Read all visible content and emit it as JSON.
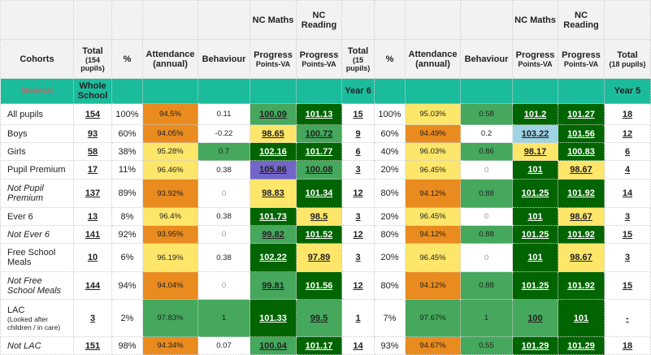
{
  "header": {
    "nc_maths": "NC Maths",
    "nc_reading": "NC Reading",
    "cohorts": "Cohorts",
    "total": "Total",
    "total_ws_sub": "(154 pupils)",
    "total_y6_sub": "(15 pupils)",
    "total_y5_sub": "(18 pupils)",
    "pct": "%",
    "attendance": "Attendance (annual)",
    "behaviour": "Behaviour",
    "progress": "Progress",
    "points_va": "Points-VA"
  },
  "group_row": {
    "label": "General",
    "whole_school": "Whole School",
    "year6": "Year 6",
    "year5": "Year 5"
  },
  "colors": {
    "orange": "#e98b1f",
    "yellow": "#fde66a",
    "green": "#45a85c",
    "dark_green": "#006400",
    "purple": "#7266c8",
    "light_blue": "#9fd3e6",
    "teal": "#1abc9c"
  },
  "rows": [
    {
      "cohort": "All pupils",
      "italic": false,
      "ws": [
        "154",
        "100%",
        [
          "94.5%",
          "O"
        ],
        [
          "0.11",
          "W"
        ],
        [
          "100.09",
          "G"
        ],
        [
          "101.13",
          "D"
        ]
      ],
      "y6": [
        "15",
        "100%",
        [
          "95.03%",
          "Y"
        ],
        [
          "0.58",
          "G"
        ],
        [
          "101.2",
          "D"
        ],
        [
          "101.27",
          "D"
        ]
      ],
      "y5_total": "18"
    },
    {
      "cohort": "Boys",
      "italic": false,
      "ws": [
        "93",
        "60%",
        [
          "94.05%",
          "O"
        ],
        [
          "-0.22",
          "W"
        ],
        [
          "98.65",
          "Y"
        ],
        [
          "100.72",
          "G"
        ]
      ],
      "y6": [
        "9",
        "60%",
        [
          "94.49%",
          "O"
        ],
        [
          "0.2",
          "W"
        ],
        [
          "103.22",
          "B"
        ],
        [
          "101.56",
          "D"
        ]
      ],
      "y5_total": "12"
    },
    {
      "cohort": "Girls",
      "italic": false,
      "ws": [
        "58",
        "38%",
        [
          "95.28%",
          "Y"
        ],
        [
          "0.7",
          "G"
        ],
        [
          "102.16",
          "D"
        ],
        [
          "101.77",
          "D"
        ]
      ],
      "y6": [
        "6",
        "40%",
        [
          "96.03%",
          "Y"
        ],
        [
          "0.86",
          "G"
        ],
        [
          "98.17",
          "Y"
        ],
        [
          "100.83",
          "D"
        ]
      ],
      "y5_total": "6"
    },
    {
      "cohort": "Pupil Premium",
      "italic": false,
      "ws": [
        "17",
        "11%",
        [
          "96.46%",
          "Y"
        ],
        [
          "0.38",
          "W"
        ],
        [
          "105.86",
          "P"
        ],
        [
          "100.08",
          "G"
        ]
      ],
      "y6": [
        "3",
        "20%",
        [
          "96.45%",
          "Y"
        ],
        [
          "0",
          "W"
        ],
        [
          "101",
          "D"
        ],
        [
          "98.67",
          "Y"
        ]
      ],
      "y5_total": "4"
    },
    {
      "cohort": "Not Pupil Premium",
      "italic": true,
      "ws": [
        "137",
        "89%",
        [
          "93.92%",
          "O"
        ],
        [
          "0",
          "W"
        ],
        [
          "98.83",
          "Y"
        ],
        [
          "101.34",
          "D"
        ]
      ],
      "y6": [
        "12",
        "80%",
        [
          "94.12%",
          "O"
        ],
        [
          "0.88",
          "G"
        ],
        [
          "101.25",
          "D"
        ],
        [
          "101.92",
          "D"
        ]
      ],
      "y5_total": "14"
    },
    {
      "cohort": "Ever 6",
      "italic": false,
      "ws": [
        "13",
        "8%",
        [
          "96.4%",
          "Y"
        ],
        [
          "0.38",
          "W"
        ],
        [
          "101.73",
          "D"
        ],
        [
          "98.5",
          "Y"
        ]
      ],
      "y6": [
        "3",
        "20%",
        [
          "96.45%",
          "Y"
        ],
        [
          "0",
          "W"
        ],
        [
          "101",
          "D"
        ],
        [
          "98.67",
          "Y"
        ]
      ],
      "y5_total": "3"
    },
    {
      "cohort": "Not Ever 6",
      "italic": true,
      "ws": [
        "141",
        "92%",
        [
          "93.95%",
          "O"
        ],
        [
          "0",
          "W"
        ],
        [
          "99.82",
          "G"
        ],
        [
          "101.52",
          "D"
        ]
      ],
      "y6": [
        "12",
        "80%",
        [
          "94.12%",
          "O"
        ],
        [
          "0.88",
          "G"
        ],
        [
          "101.25",
          "D"
        ],
        [
          "101.92",
          "D"
        ]
      ],
      "y5_total": "15"
    },
    {
      "cohort": "Free School Meals",
      "italic": false,
      "ws": [
        "10",
        "6%",
        [
          "96.19%",
          "Y"
        ],
        [
          "0.38",
          "W"
        ],
        [
          "102.22",
          "D"
        ],
        [
          "97.89",
          "Y"
        ]
      ],
      "y6": [
        "3",
        "20%",
        [
          "96.45%",
          "Y"
        ],
        [
          "0",
          "W"
        ],
        [
          "101",
          "D"
        ],
        [
          "98.67",
          "Y"
        ]
      ],
      "y5_total": "3"
    },
    {
      "cohort": "Not Free School Meals",
      "italic": true,
      "ws": [
        "144",
        "94%",
        [
          "94.04%",
          "O"
        ],
        [
          "0",
          "W"
        ],
        [
          "99.81",
          "G"
        ],
        [
          "101.56",
          "D"
        ]
      ],
      "y6": [
        "12",
        "80%",
        [
          "94.12%",
          "O"
        ],
        [
          "0.88",
          "G"
        ],
        [
          "101.25",
          "D"
        ],
        [
          "101.92",
          "D"
        ]
      ],
      "y5_total": "15"
    },
    {
      "cohort": "LAC",
      "sub": "(Looked after children / in care)",
      "italic": false,
      "ws": [
        "3",
        "2%",
        [
          "97.83%",
          "G"
        ],
        [
          "1",
          "G"
        ],
        [
          "101.33",
          "D"
        ],
        [
          "99.5",
          "G"
        ]
      ],
      "y6": [
        "1",
        "7%",
        [
          "97.67%",
          "G"
        ],
        [
          "1",
          "G"
        ],
        [
          "100",
          "G"
        ],
        [
          "101",
          "D"
        ]
      ],
      "y5_total": "-"
    },
    {
      "cohort": "Not LAC",
      "italic": true,
      "ws": [
        "151",
        "98%",
        [
          "94.34%",
          "O"
        ],
        [
          "0.07",
          "W"
        ],
        [
          "100.04",
          "G"
        ],
        [
          "101.17",
          "D"
        ]
      ],
      "y6": [
        "14",
        "93%",
        [
          "94.67%",
          "O"
        ],
        [
          "0.55",
          "G"
        ],
        [
          "101.29",
          "D"
        ],
        [
          "101.29",
          "D"
        ]
      ],
      "y5_total": "18"
    }
  ]
}
